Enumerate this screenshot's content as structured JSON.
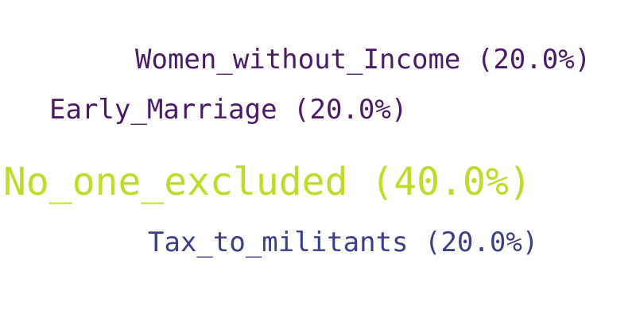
{
  "chart_data": {
    "type": "wordcloud",
    "title": "",
    "words": [
      {
        "label": "Women_without_Income",
        "percent": 20.0,
        "text": "Women_without_Income (20.0%)",
        "color": "#4a1a66"
      },
      {
        "label": "Early_Marriage",
        "percent": 20.0,
        "text": "Early_Marriage (20.0%)",
        "color": "#4a1a66"
      },
      {
        "label": "No_one_excluded",
        "percent": 40.0,
        "text": "No_one_excluded (40.0%)",
        "color": "#bedd2a"
      },
      {
        "label": "Tax_to_militants",
        "percent": 20.0,
        "text": "Tax_to_militants (20.0%)",
        "color": "#3b3f87"
      }
    ]
  }
}
